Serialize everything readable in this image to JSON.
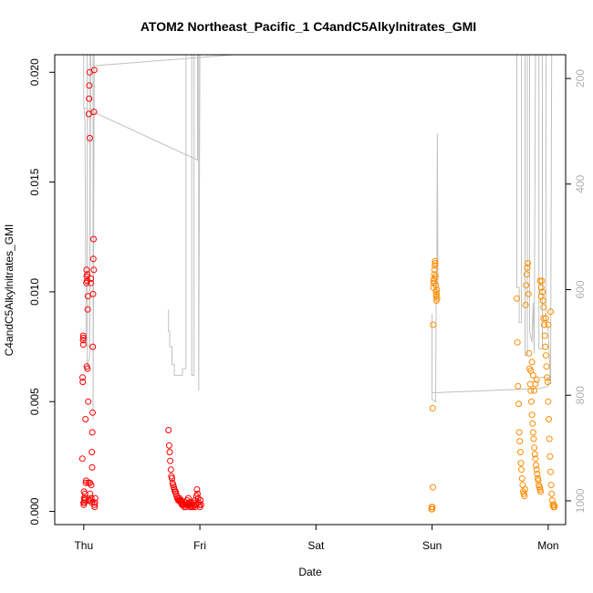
{
  "chart_data": {
    "type": "scatter",
    "title": "ATOM2 Northeast_Pacific_1 C4andC5Alkylnitrates_GMI",
    "xlabel": "Date",
    "ylabel": "C4andC5Alkylnitrates_GMI",
    "x_ticks": [
      {
        "label": "Thu",
        "value": 0
      },
      {
        "label": "Fri",
        "value": 1
      },
      {
        "label": "Sat",
        "value": 2
      },
      {
        "label": "Sun",
        "value": 3
      },
      {
        "label": "Mon",
        "value": 4
      }
    ],
    "xlim": [
      -0.25,
      4.15
    ],
    "ylim": [
      -0.0006,
      0.0208
    ],
    "y_ticks": [
      "0.000",
      "0.005",
      "0.010",
      "0.015",
      "0.020"
    ],
    "y_tick_values": [
      0,
      0.005,
      0.01,
      0.015,
      0.02
    ],
    "y2_ticks": [
      "200",
      "400",
      "600",
      "800",
      "1000"
    ],
    "y2_tick_values": [
      200,
      400,
      600,
      800,
      1000
    ],
    "y2lim": [
      1045,
      155
    ],
    "y2_inverted": true,
    "series": [
      {
        "color": "#ff0000",
        "points": [
          [
            -0.012,
            0.0024
          ],
          [
            -0.01,
            0.0061
          ],
          [
            -0.008,
            0.0059
          ],
          [
            -0.006,
            0.0078
          ],
          [
            -0.005,
            0.008
          ],
          [
            -0.004,
            0.0076
          ],
          [
            -0.003,
            0.0079
          ],
          [
            -0.002,
            0.0004
          ],
          [
            0.0,
            0.0003
          ],
          [
            0.002,
            0.0009
          ],
          [
            0.003,
            0.0006
          ],
          [
            0.005,
            0.0005
          ],
          [
            0.007,
            0.0004
          ],
          [
            0.01,
            0.0008
          ],
          [
            0.012,
            0.0006
          ],
          [
            0.015,
            0.0042
          ],
          [
            0.018,
            0.0013
          ],
          [
            0.02,
            0.0014
          ],
          [
            0.022,
            0.0104
          ],
          [
            0.024,
            0.011
          ],
          [
            0.025,
            0.0107
          ],
          [
            0.026,
            0.0066
          ],
          [
            0.028,
            0.0105
          ],
          [
            0.03,
            0.0108
          ],
          [
            0.032,
            0.0065
          ],
          [
            0.034,
            0.0092
          ],
          [
            0.036,
            0.0098
          ],
          [
            0.038,
            0.005
          ],
          [
            0.04,
            0.0013
          ],
          [
            0.042,
            0.0005
          ],
          [
            0.044,
            0.0181
          ],
          [
            0.046,
            0.0188
          ],
          [
            0.048,
            0.0194
          ],
          [
            0.05,
            0.02
          ],
          [
            0.052,
            0.017
          ],
          [
            0.054,
            0.0013
          ],
          [
            0.056,
            0.0008
          ],
          [
            0.058,
            0.0005
          ],
          [
            0.06,
            0.0104
          ],
          [
            0.062,
            0.0106
          ],
          [
            0.064,
            0.0012
          ],
          [
            0.066,
            0.0006
          ],
          [
            0.068,
            0.0004
          ],
          [
            0.07,
            0.0027
          ],
          [
            0.072,
            0.002
          ],
          [
            0.074,
            0.0036
          ],
          [
            0.076,
            0.0045
          ],
          [
            0.078,
            0.0075
          ],
          [
            0.08,
            0.0099
          ],
          [
            0.082,
            0.0115
          ],
          [
            0.084,
            0.0124
          ],
          [
            0.086,
            0.011
          ],
          [
            0.088,
            0.0182
          ],
          [
            0.09,
            0.0201
          ],
          [
            0.092,
            0.0003
          ],
          [
            0.094,
            0.0002
          ],
          [
            0.096,
            0.0004
          ],
          [
            0.098,
            0.0006
          ],
          [
            0.73,
            0.0037
          ],
          [
            0.735,
            0.003
          ],
          [
            0.74,
            0.0027
          ],
          [
            0.745,
            0.0023
          ],
          [
            0.75,
            0.0019
          ],
          [
            0.755,
            0.0016
          ],
          [
            0.76,
            0.0015
          ],
          [
            0.765,
            0.0013
          ],
          [
            0.77,
            0.0012
          ],
          [
            0.775,
            0.0011
          ],
          [
            0.78,
            0.001
          ],
          [
            0.785,
            0.0009
          ],
          [
            0.79,
            0.0009
          ],
          [
            0.795,
            0.0008
          ],
          [
            0.8,
            0.0007
          ],
          [
            0.805,
            0.0006
          ],
          [
            0.81,
            0.0006
          ],
          [
            0.815,
            0.0005
          ],
          [
            0.82,
            0.0005
          ],
          [
            0.825,
            0.0006
          ],
          [
            0.83,
            0.0005
          ],
          [
            0.835,
            0.0004
          ],
          [
            0.84,
            0.0005
          ],
          [
            0.845,
            0.0003
          ],
          [
            0.85,
            0.0004
          ],
          [
            0.855,
            0.0003
          ],
          [
            0.86,
            0.0003
          ],
          [
            0.865,
            0.0002
          ],
          [
            0.87,
            0.0003
          ],
          [
            0.875,
            0.0004
          ],
          [
            0.88,
            0.0002
          ],
          [
            0.885,
            0.0003
          ],
          [
            0.89,
            0.0005
          ],
          [
            0.895,
            0.0003
          ],
          [
            0.9,
            0.0006
          ],
          [
            0.905,
            0.0004
          ],
          [
            0.91,
            0.0003
          ],
          [
            0.915,
            0.0002
          ],
          [
            0.92,
            0.0003
          ],
          [
            0.925,
            0.0004
          ],
          [
            0.93,
            0.0002
          ],
          [
            0.935,
            0.0003
          ],
          [
            0.94,
            0.0002
          ],
          [
            0.945,
            0.0004
          ],
          [
            0.95,
            0.0003
          ],
          [
            0.955,
            0.0005
          ],
          [
            0.96,
            0.0002
          ],
          [
            0.965,
            0.0003
          ],
          [
            0.97,
            0.0007
          ],
          [
            0.975,
            0.001
          ],
          [
            0.98,
            0.0008
          ],
          [
            0.985,
            0.0006
          ],
          [
            0.99,
            0.0004
          ],
          [
            0.995,
            0.0003
          ],
          [
            1.0,
            0.0002
          ],
          [
            1.005,
            0.0005
          ],
          [
            1.01,
            0.0003
          ]
        ]
      },
      {
        "color": "#ff8c00",
        "points": [
          [
            2.995,
            0.0001
          ],
          [
            2.997,
            0.0002
          ],
          [
            3.0,
            0.0001
          ],
          [
            3.003,
            0.0002
          ],
          [
            3.005,
            0.0047
          ],
          [
            3.007,
            0.0011
          ],
          [
            3.009,
            0.0085
          ],
          [
            3.011,
            0.0102
          ],
          [
            3.013,
            0.0104
          ],
          [
            3.015,
            0.0105
          ],
          [
            3.017,
            0.0106
          ],
          [
            3.019,
            0.0108
          ],
          [
            3.021,
            0.011
          ],
          [
            3.023,
            0.0112
          ],
          [
            3.025,
            0.0114
          ],
          [
            3.027,
            0.0113
          ],
          [
            3.029,
            0.0107
          ],
          [
            3.031,
            0.0103
          ],
          [
            3.033,
            0.01
          ],
          [
            3.035,
            0.0098
          ],
          [
            3.037,
            0.0096
          ],
          [
            3.039,
            0.0099
          ],
          [
            3.041,
            0.0101
          ],
          [
            3.043,
            0.0097
          ],
          [
            3.73,
            0.0097
          ],
          [
            3.735,
            0.0077
          ],
          [
            3.74,
            0.0057
          ],
          [
            3.745,
            0.0049
          ],
          [
            3.75,
            0.0036
          ],
          [
            3.755,
            0.0032
          ],
          [
            3.76,
            0.0027
          ],
          [
            3.765,
            0.0022
          ],
          [
            3.77,
            0.0019
          ],
          [
            3.775,
            0.0015
          ],
          [
            3.78,
            0.0012
          ],
          [
            3.785,
            0.0009
          ],
          [
            3.79,
            0.0008
          ],
          [
            3.795,
            0.0007
          ],
          [
            3.8,
            0.001
          ],
          [
            3.805,
            0.0094
          ],
          [
            3.81,
            0.0103
          ],
          [
            3.815,
            0.0108
          ],
          [
            3.82,
            0.0111
          ],
          [
            3.825,
            0.0113
          ],
          [
            3.83,
            0.0099
          ],
          [
            3.835,
            0.0072
          ],
          [
            3.84,
            0.0065
          ],
          [
            3.845,
            0.0058
          ],
          [
            3.85,
            0.0055
          ],
          [
            3.855,
            0.005
          ],
          [
            3.86,
            0.0044
          ],
          [
            3.865,
            0.004
          ],
          [
            3.87,
            0.0036
          ],
          [
            3.875,
            0.0033
          ],
          [
            3.88,
            0.0029
          ],
          [
            3.885,
            0.0026
          ],
          [
            3.89,
            0.0024
          ],
          [
            3.895,
            0.0021
          ],
          [
            3.9,
            0.0019
          ],
          [
            3.905,
            0.0017
          ],
          [
            3.91,
            0.0015
          ],
          [
            3.915,
            0.0014
          ],
          [
            3.92,
            0.0012
          ],
          [
            3.925,
            0.0011
          ],
          [
            3.93,
            0.001
          ],
          [
            3.935,
            0.0009
          ],
          [
            3.94,
            0.0102
          ],
          [
            3.945,
            0.0105
          ],
          [
            3.95,
            0.01
          ],
          [
            3.955,
            0.0096
          ],
          [
            3.96,
            0.0088
          ],
          [
            3.965,
            0.0085
          ],
          [
            3.97,
            0.008
          ],
          [
            3.975,
            0.0075
          ],
          [
            3.98,
            0.0071
          ],
          [
            3.985,
            0.0066
          ],
          [
            3.99,
            0.0061
          ],
          [
            3.995,
            0.0059
          ],
          [
            4.0,
            0.005
          ],
          [
            4.005,
            0.0042
          ],
          [
            4.01,
            0.0033
          ],
          [
            4.015,
            0.0025
          ],
          [
            4.02,
            0.0018
          ],
          [
            4.025,
            0.0012
          ],
          [
            4.03,
            0.0008
          ],
          [
            4.035,
            0.0005
          ],
          [
            4.04,
            0.0003
          ],
          [
            4.045,
            0.0002
          ],
          [
            4.05,
            0.0003
          ],
          [
            4.055,
            0.0002
          ],
          [
            3.85,
            0.0064
          ],
          [
            3.86,
            0.0068
          ],
          [
            3.87,
            0.0062
          ],
          [
            3.88,
            0.0055
          ],
          [
            3.89,
            0.0058
          ],
          [
            3.9,
            0.006
          ],
          [
            3.93,
            0.0105
          ],
          [
            3.94,
            0.0098
          ],
          [
            3.96,
            0.0093
          ],
          [
            3.98,
            0.0088
          ],
          [
            4.0,
            0.0085
          ],
          [
            4.02,
            0.0091
          ]
        ]
      }
    ],
    "profile_lines": [
      [
        [
          0.0,
          0.0208
        ],
        [
          0.0,
          0.0185
        ],
        [
          0.01,
          0.0178
        ],
        [
          0.02,
          0.0076
        ],
        [
          0.05,
          0.0075
        ],
        [
          0.055,
          0.0208
        ]
      ],
      [
        [
          0.03,
          0.0208
        ],
        [
          0.03,
          0.0066
        ],
        [
          0.05,
          0.007
        ],
        [
          0.06,
          0.0208
        ]
      ],
      [
        [
          0.0,
          0.0184
        ],
        [
          0.98,
          0.016
        ],
        [
          0.98,
          0.0208
        ]
      ],
      [
        [
          0.08,
          0.0208
        ],
        [
          0.08,
          0.0042
        ],
        [
          0.09,
          0.0208
        ]
      ],
      [
        [
          0.1,
          0.0203
        ],
        [
          1.3,
          0.0208
        ]
      ],
      [
        [
          0.73,
          0.0092
        ],
        [
          0.73,
          0.0082
        ],
        [
          0.74,
          0.0082
        ],
        [
          0.74,
          0.0075
        ],
        [
          0.76,
          0.0075
        ],
        [
          0.76,
          0.0067
        ],
        [
          0.78,
          0.0067
        ],
        [
          0.78,
          0.0062
        ],
        [
          0.85,
          0.0062
        ],
        [
          0.85,
          0.0065
        ],
        [
          0.88,
          0.0065
        ],
        [
          0.88,
          0.0208
        ]
      ],
      [
        [
          0.93,
          0.0208
        ],
        [
          0.93,
          0.0062
        ],
        [
          0.95,
          0.0062
        ],
        [
          0.95,
          0.0208
        ]
      ],
      [
        [
          0.99,
          0.0208
        ],
        [
          0.99,
          0.0055
        ],
        [
          1.0,
          0.0208
        ]
      ],
      [
        [
          3.0,
          0.009
        ],
        [
          3.0,
          0.0051
        ],
        [
          3.03,
          0.005
        ],
        [
          3.035,
          0.0095
        ],
        [
          3.04,
          0.0103
        ],
        [
          3.045,
          0.0172
        ],
        [
          3.05,
          0.0103
        ]
      ],
      [
        [
          3.0,
          0.0054
        ],
        [
          3.93,
          0.0056
        ],
        [
          4.0,
          0.0057
        ],
        [
          4.0,
          0.0061
        ],
        [
          3.93,
          0.0061
        ]
      ],
      [
        [
          3.73,
          0.0208
        ],
        [
          3.73,
          0.0102
        ],
        [
          3.75,
          0.0102
        ],
        [
          3.75,
          0.0086
        ],
        [
          3.77,
          0.0086
        ],
        [
          3.77,
          0.0208
        ]
      ],
      [
        [
          3.8,
          0.0208
        ],
        [
          3.8,
          0.0071
        ],
        [
          3.82,
          0.0071
        ],
        [
          3.82,
          0.0208
        ]
      ],
      [
        [
          3.84,
          0.0208
        ],
        [
          3.84,
          0.0082
        ],
        [
          3.86,
          0.0077
        ],
        [
          3.87,
          0.0095
        ],
        [
          3.88,
          0.0072
        ],
        [
          3.89,
          0.0208
        ]
      ],
      [
        [
          3.92,
          0.0208
        ],
        [
          3.92,
          0.0074
        ],
        [
          3.95,
          0.0074
        ],
        [
          3.95,
          0.0208
        ]
      ],
      [
        [
          3.98,
          0.0208
        ],
        [
          3.98,
          0.0088
        ],
        [
          4.0,
          0.0082
        ],
        [
          4.01,
          0.007
        ],
        [
          4.02,
          0.0058
        ],
        [
          4.03,
          0.0208
        ]
      ]
    ],
    "grid": false,
    "legend": "none"
  }
}
